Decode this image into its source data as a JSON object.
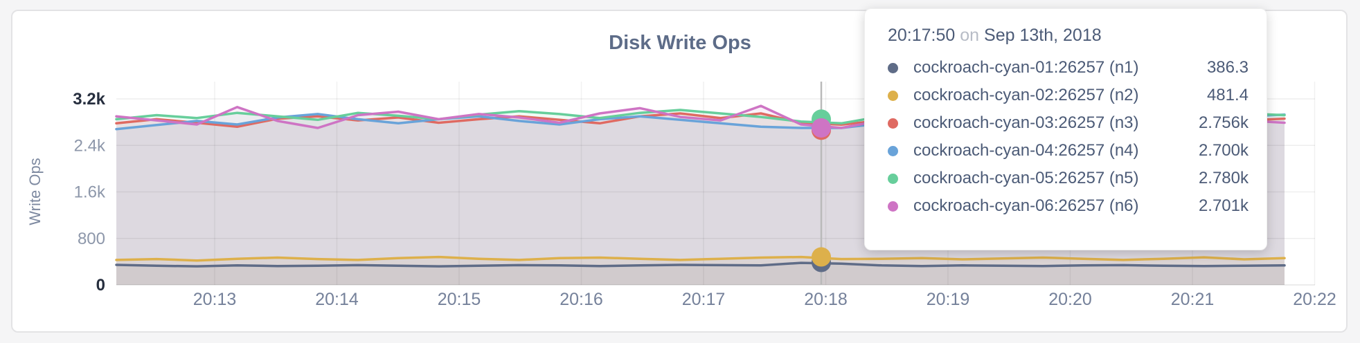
{
  "card": {
    "title": "Disk Write Ops"
  },
  "colors": {
    "panel_border": "#e3e3e5",
    "page_bg": "#f5f5f6",
    "title_text": "#5d6c88",
    "axis_text": "#75819a",
    "axis_text_emphasis": "#262e3e",
    "axis_title_text": "#7d89a0",
    "hover_line": "#bababa"
  },
  "chart_data": {
    "type": "line",
    "title": "Disk Write Ops",
    "xlabel": "",
    "ylabel": "Write Ops",
    "ylim": [
      0,
      3200
    ],
    "grid": true,
    "legend_position": "none",
    "y_ticks": [
      {
        "value": 0,
        "label": "0",
        "emphasis": true
      },
      {
        "value": 800,
        "label": "800",
        "emphasis": false
      },
      {
        "value": 1600,
        "label": "1.6k",
        "emphasis": false
      },
      {
        "value": 2400,
        "label": "2.4k",
        "emphasis": false
      },
      {
        "value": 3200,
        "label": "3.2k",
        "emphasis": true
      }
    ],
    "x_ticks": [
      "20:13",
      "20:14",
      "20:15",
      "20:16",
      "20:17",
      "20:18",
      "20:19",
      "20:20",
      "20:21",
      "20:22"
    ],
    "series": [
      {
        "name": "cockroach-cyan-01:26257 (n1)",
        "color": "#5f6c87",
        "values": [
          345,
          330,
          320,
          335,
          325,
          330,
          340,
          330,
          320,
          330,
          340,
          335,
          325,
          335,
          345,
          340,
          335,
          380,
          365,
          335,
          325,
          335,
          330,
          325,
          335,
          340,
          330,
          325,
          330,
          335
        ]
      },
      {
        "name": "cockroach-cyan-02:26257 (n2)",
        "color": "#ddb04b",
        "values": [
          430,
          445,
          420,
          450,
          470,
          445,
          430,
          460,
          480,
          450,
          430,
          460,
          470,
          450,
          430,
          450,
          470,
          480,
          445,
          450,
          460,
          440,
          455,
          470,
          450,
          430,
          450,
          475,
          440,
          460
        ]
      },
      {
        "name": "cockroach-cyan-03:26257 (n3)",
        "color": "#df6a62",
        "values": [
          2780,
          2850,
          2790,
          2720,
          2860,
          2900,
          2830,
          2880,
          2790,
          2850,
          2900,
          2840,
          2780,
          2900,
          2950,
          2870,
          2950,
          2790,
          2756,
          2830,
          2880,
          2800,
          2850,
          2780,
          2840,
          2890,
          2960,
          2780,
          2830,
          2860
        ]
      },
      {
        "name": "cockroach-cyan-04:26257 (n4)",
        "color": "#69a3d9",
        "values": [
          2680,
          2750,
          2820,
          2760,
          2880,
          2940,
          2850,
          2780,
          2850,
          2900,
          2820,
          2760,
          2850,
          2900,
          2840,
          2780,
          2720,
          2700,
          2700,
          2780,
          2850,
          2900,
          2820,
          2760,
          2820,
          2880,
          2800,
          2740,
          2900,
          2930
        ]
      },
      {
        "name": "cockroach-cyan-05:26257 (n5)",
        "color": "#67ce9b",
        "values": [
          2850,
          2920,
          2870,
          2960,
          2900,
          2840,
          2960,
          2910,
          2850,
          2930,
          2990,
          2940,
          2870,
          2960,
          3010,
          2950,
          2890,
          2810,
          2780,
          2900,
          2950,
          2880,
          2930,
          2860,
          2920,
          2970,
          2900,
          2840,
          2950,
          2920
        ]
      },
      {
        "name": "cockroach-cyan-06:26257 (n6)",
        "color": "#ce74c4",
        "values": [
          2900,
          2830,
          2760,
          3060,
          2820,
          2700,
          2920,
          2980,
          2850,
          2940,
          2880,
          2790,
          2950,
          3040,
          2890,
          2830,
          3080,
          2760,
          2700,
          2830,
          2900,
          2960,
          2870,
          2800,
          2870,
          2960,
          2900,
          2760,
          2830,
          2790
        ]
      }
    ],
    "hover": {
      "time": "20:17:50",
      "date": "Sep 13th, 2018",
      "points": [
        {
          "series": "cockroach-cyan-01:26257 (n1)",
          "value": 386.3,
          "display": "386.3"
        },
        {
          "series": "cockroach-cyan-02:26257 (n2)",
          "value": 481.4,
          "display": "481.4"
        },
        {
          "series": "cockroach-cyan-03:26257 (n3)",
          "value": 2756,
          "display": "2.756k"
        },
        {
          "series": "cockroach-cyan-04:26257 (n4)",
          "value": 2700,
          "display": "2.700k"
        },
        {
          "series": "cockroach-cyan-05:26257 (n5)",
          "value": 2780,
          "display": "2.780k"
        },
        {
          "series": "cockroach-cyan-06:26257 (n6)",
          "value": 2701,
          "display": "2.701k"
        }
      ]
    }
  },
  "tooltip": {
    "time": "20:17:50",
    "connector": "on",
    "date": "Sep 13th, 2018",
    "rows": [
      {
        "name": "cockroach-cyan-01:26257 (n1)",
        "value": "386.3",
        "color": "#5f6c87"
      },
      {
        "name": "cockroach-cyan-02:26257 (n2)",
        "value": "481.4",
        "color": "#ddb04b"
      },
      {
        "name": "cockroach-cyan-03:26257 (n3)",
        "value": "2.756k",
        "color": "#df6a62"
      },
      {
        "name": "cockroach-cyan-04:26257 (n4)",
        "value": "2.700k",
        "color": "#69a3d9"
      },
      {
        "name": "cockroach-cyan-05:26257 (n5)",
        "value": "2.780k",
        "color": "#67ce9b"
      },
      {
        "name": "cockroach-cyan-06:26257 (n6)",
        "value": "2.701k",
        "color": "#ce74c4"
      }
    ]
  }
}
